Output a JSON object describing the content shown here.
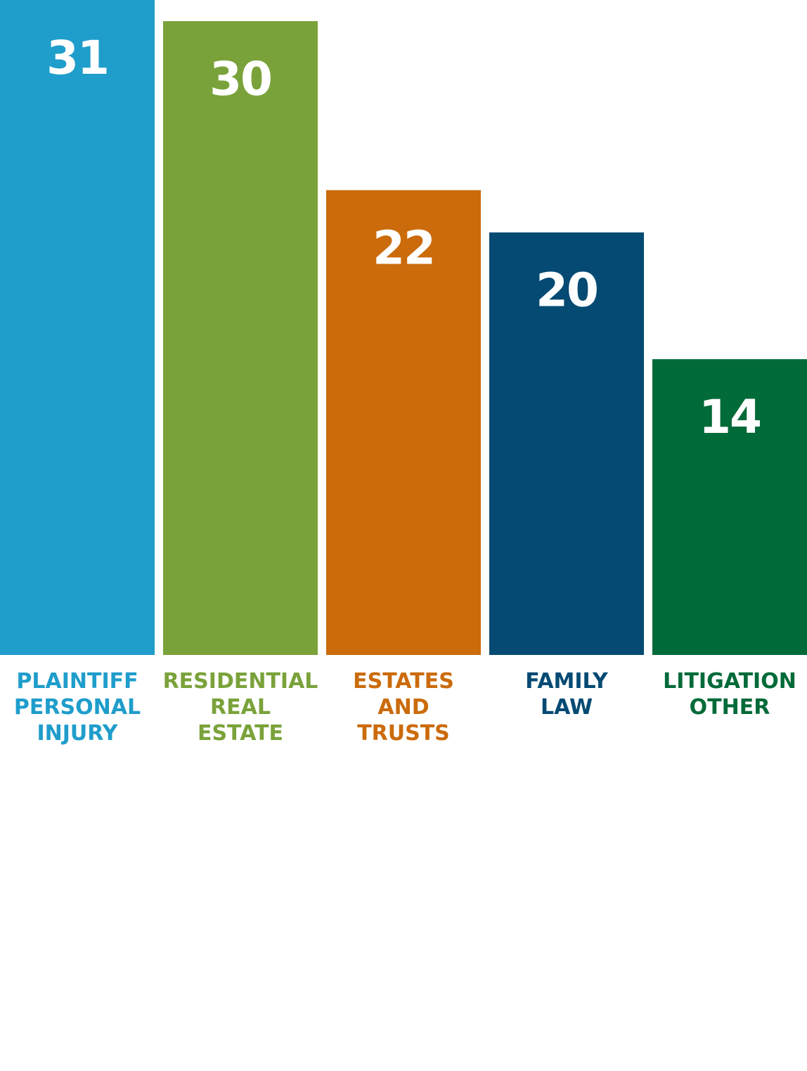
{
  "chart_data": {
    "type": "bar",
    "categories": [
      [
        "PLAINTIFF",
        "PERSONAL",
        "INJURY"
      ],
      [
        "RESIDENTIAL",
        "REAL",
        "ESTATE"
      ],
      [
        "ESTATES",
        "AND",
        "TRUSTS"
      ],
      [
        "FAMILY",
        "LAW"
      ],
      [
        "LITIGATION",
        "OTHER"
      ]
    ],
    "values": [
      31,
      30,
      22,
      20,
      14
    ],
    "value_labels": [
      "31",
      "30",
      "22",
      "20",
      "14"
    ],
    "colors": [
      "#1f9dcb",
      "#7aa23a",
      "#cb6b0b",
      "#044a73",
      "#016a39"
    ],
    "title": "",
    "xlabel": "",
    "ylabel": "",
    "ylim": [
      0,
      31
    ],
    "grid": false,
    "legend": "none"
  }
}
